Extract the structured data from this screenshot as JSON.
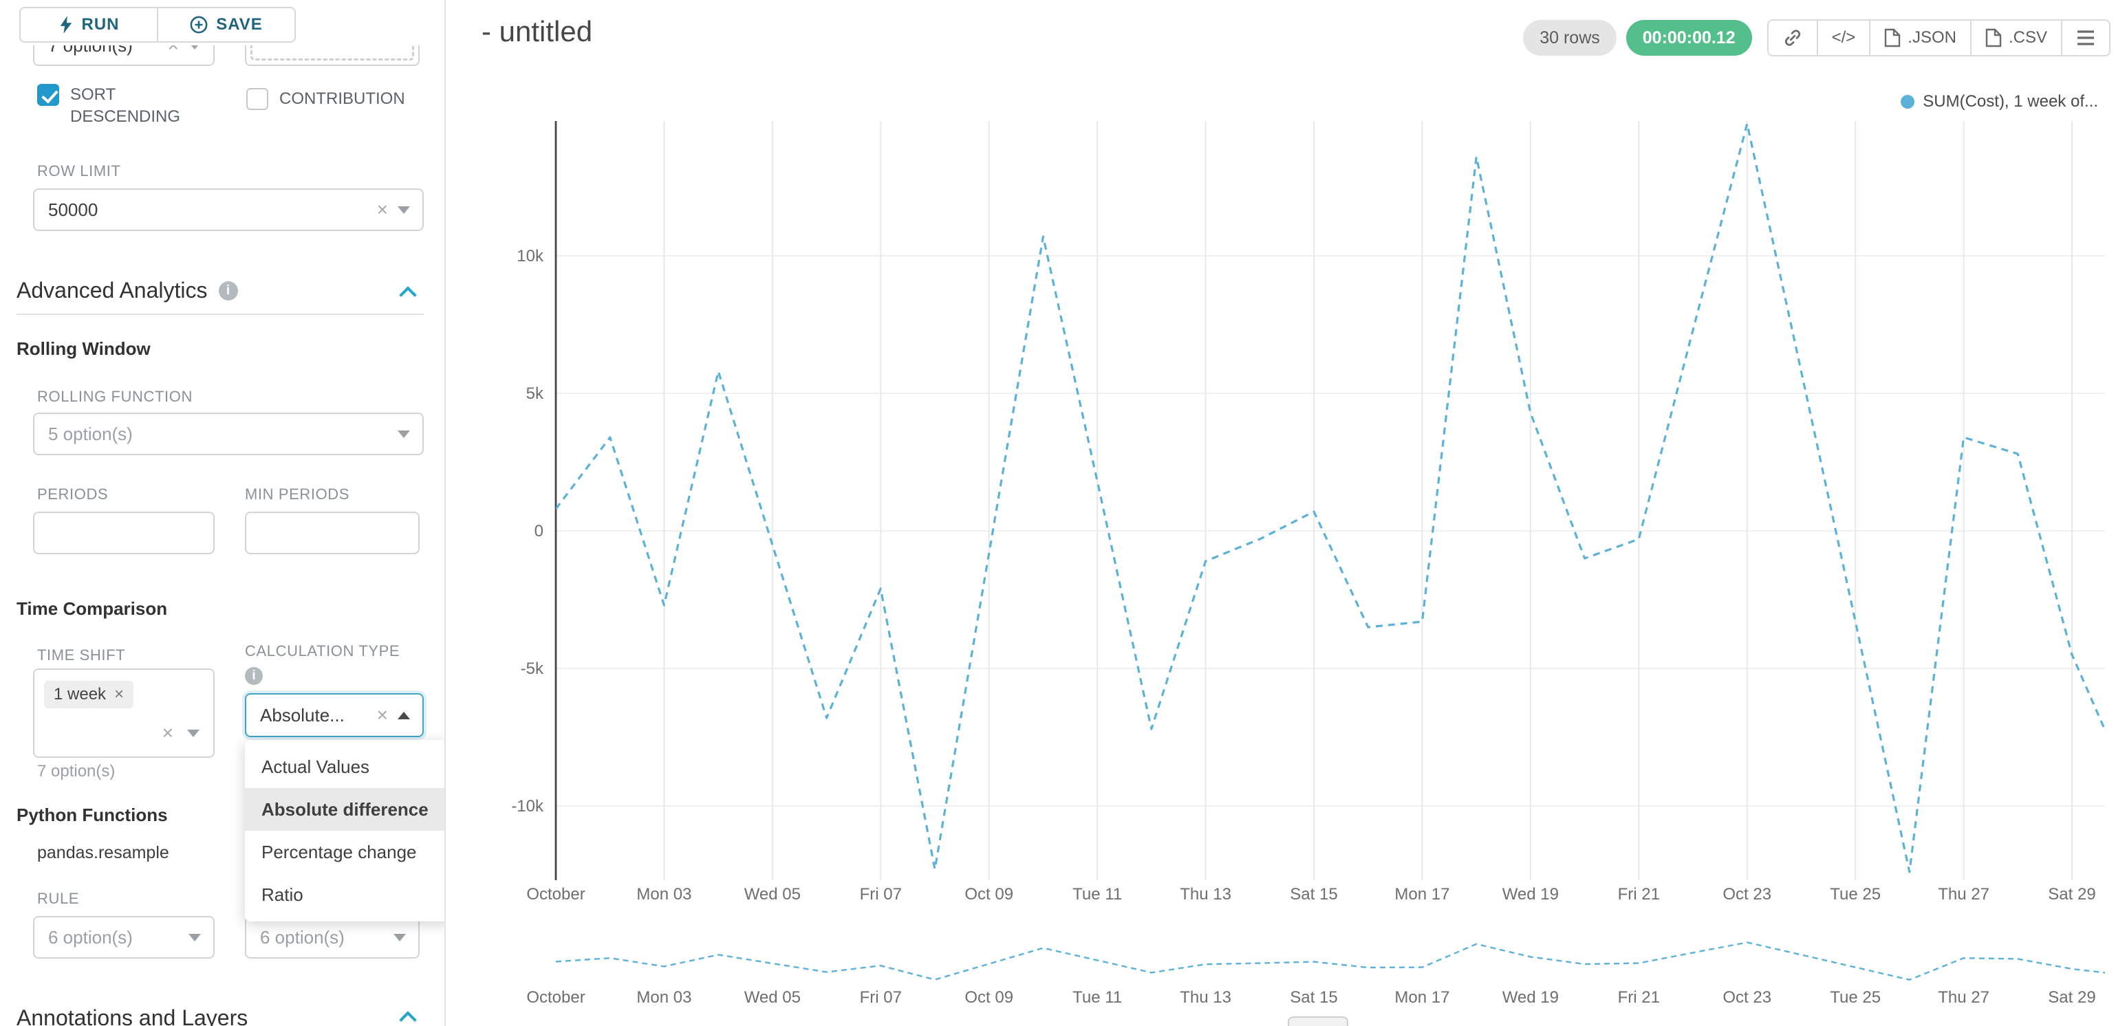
{
  "toolbar": {
    "run_label": "RUN",
    "save_label": "SAVE"
  },
  "panel": {
    "top_clipped": {
      "left_value": "7 option(s)"
    },
    "sort_descending": {
      "label": "SORT DESCENDING",
      "checked": true
    },
    "contribution": {
      "label": "CONTRIBUTION",
      "checked": false
    },
    "row_limit": {
      "label": "ROW LIMIT",
      "value": "50000"
    },
    "advanced_analytics": {
      "title": "Advanced Analytics"
    },
    "rolling_window": {
      "title": "Rolling Window",
      "rolling_function": {
        "label": "ROLLING FUNCTION",
        "placeholder": "5 option(s)"
      },
      "periods": {
        "label": "PERIODS"
      },
      "min_periods": {
        "label": "MIN PERIODS"
      }
    },
    "time_comparison": {
      "title": "Time Comparison",
      "time_shift": {
        "label": "TIME SHIFT",
        "tag": "1 week",
        "hint": "7 option(s)"
      },
      "calculation_type": {
        "label": "CALCULATION TYPE",
        "value": "Absolute..."
      },
      "menu": {
        "options": [
          "Actual Values",
          "Absolute difference",
          "Percentage change",
          "Ratio"
        ],
        "selected": "Absolute difference"
      }
    },
    "python_functions": {
      "title": "Python Functions",
      "function_name": "pandas.resample",
      "rule": {
        "label": "RULE",
        "placeholder": "6 option(s)"
      },
      "rule2": {
        "placeholder": "6 option(s)"
      }
    },
    "annotations": {
      "title": "Annotations and Layers"
    }
  },
  "header": {
    "title": "- untitled",
    "rows_badge": "30 rows",
    "timer_badge": "00:00:00.12",
    "actions": {
      "code_label": "</>",
      "json_label": ".JSON",
      "csv_label": ".CSV"
    }
  },
  "chart_data": {
    "type": "line",
    "title": "",
    "color": "#5cb1d8",
    "line_style": "dashed",
    "legend": [
      {
        "label": "SUM(Cost), 1 week of...",
        "color": "#5cb1d8"
      }
    ],
    "legend_position": "top-right",
    "grid": true,
    "x_tick_labels": [
      "October",
      "Mon 03",
      "Wed 05",
      "Fri 07",
      "Oct 09",
      "Tue 11",
      "Thu 13",
      "Sat 15",
      "Mon 17",
      "Wed 19",
      "Fri 21",
      "Oct 23",
      "Tue 25",
      "Thu 27",
      "Sat 29"
    ],
    "x_tick_day_index": [
      0,
      2,
      4,
      6,
      8,
      10,
      12,
      14,
      16,
      18,
      20,
      22,
      24,
      26,
      28
    ],
    "y_ticks": {
      "labels": [
        "10k",
        "5k",
        "0",
        "-5k",
        "-10k"
      ],
      "values": [
        10000,
        5000,
        0,
        -5000,
        -10000
      ]
    },
    "ylim": [
      -12700,
      14900
    ],
    "has_mini_preview": true,
    "series": [
      {
        "name": "SUM(Cost), 1 week of...",
        "dates": [
          "Oct 01",
          "Oct 02",
          "Oct 03",
          "Oct 04",
          "Oct 05",
          "Oct 06",
          "Oct 07",
          "Oct 08",
          "Oct 09",
          "Oct 10",
          "Oct 11",
          "Oct 12",
          "Oct 13",
          "Oct 14",
          "Oct 15",
          "Oct 16",
          "Oct 17",
          "Oct 18",
          "Oct 19",
          "Oct 20",
          "Oct 21",
          "Oct 22",
          "Oct 23",
          "Oct 24",
          "Oct 25",
          "Oct 26",
          "Oct 27",
          "Oct 28",
          "Oct 29",
          "Oct 30"
        ],
        "values": [
          800,
          3400,
          -2700,
          5800,
          -500,
          -6800,
          -2100,
          -12300,
          -800,
          10700,
          1800,
          -7200,
          -1100,
          -300,
          700,
          -3500,
          -3300,
          13600,
          4300,
          -1000,
          -300,
          7300,
          14800,
          5800,
          -3300,
          -12400,
          3400,
          2800,
          -4500,
          -9000
        ]
      }
    ]
  }
}
